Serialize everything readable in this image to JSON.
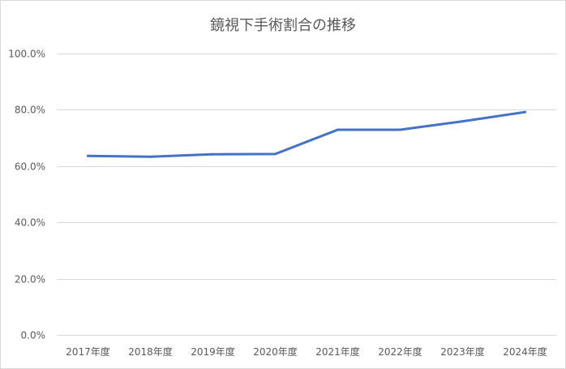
{
  "chart_data": {
    "type": "line",
    "title": "鏡視下手術割合の推移",
    "xlabel": "",
    "ylabel": "",
    "categories": [
      "2017年度",
      "2018年度",
      "2019年度",
      "2020年度",
      "2021年度",
      "2022年度",
      "2023年度",
      "2024年度"
    ],
    "series": [
      {
        "values": [
          63.6,
          63.3,
          64.2,
          64.3,
          72.9,
          72.9,
          75.9,
          79.2
        ],
        "color": "#4472c4"
      }
    ],
    "ylim": [
      0,
      100
    ],
    "yticks": [
      0,
      20,
      40,
      60,
      80,
      100
    ],
    "ytick_labels": [
      "0.0%",
      "20.0%",
      "40.0%",
      "60.0%",
      "80.0%",
      "100.0%"
    ],
    "grid": true,
    "legend": "none"
  }
}
